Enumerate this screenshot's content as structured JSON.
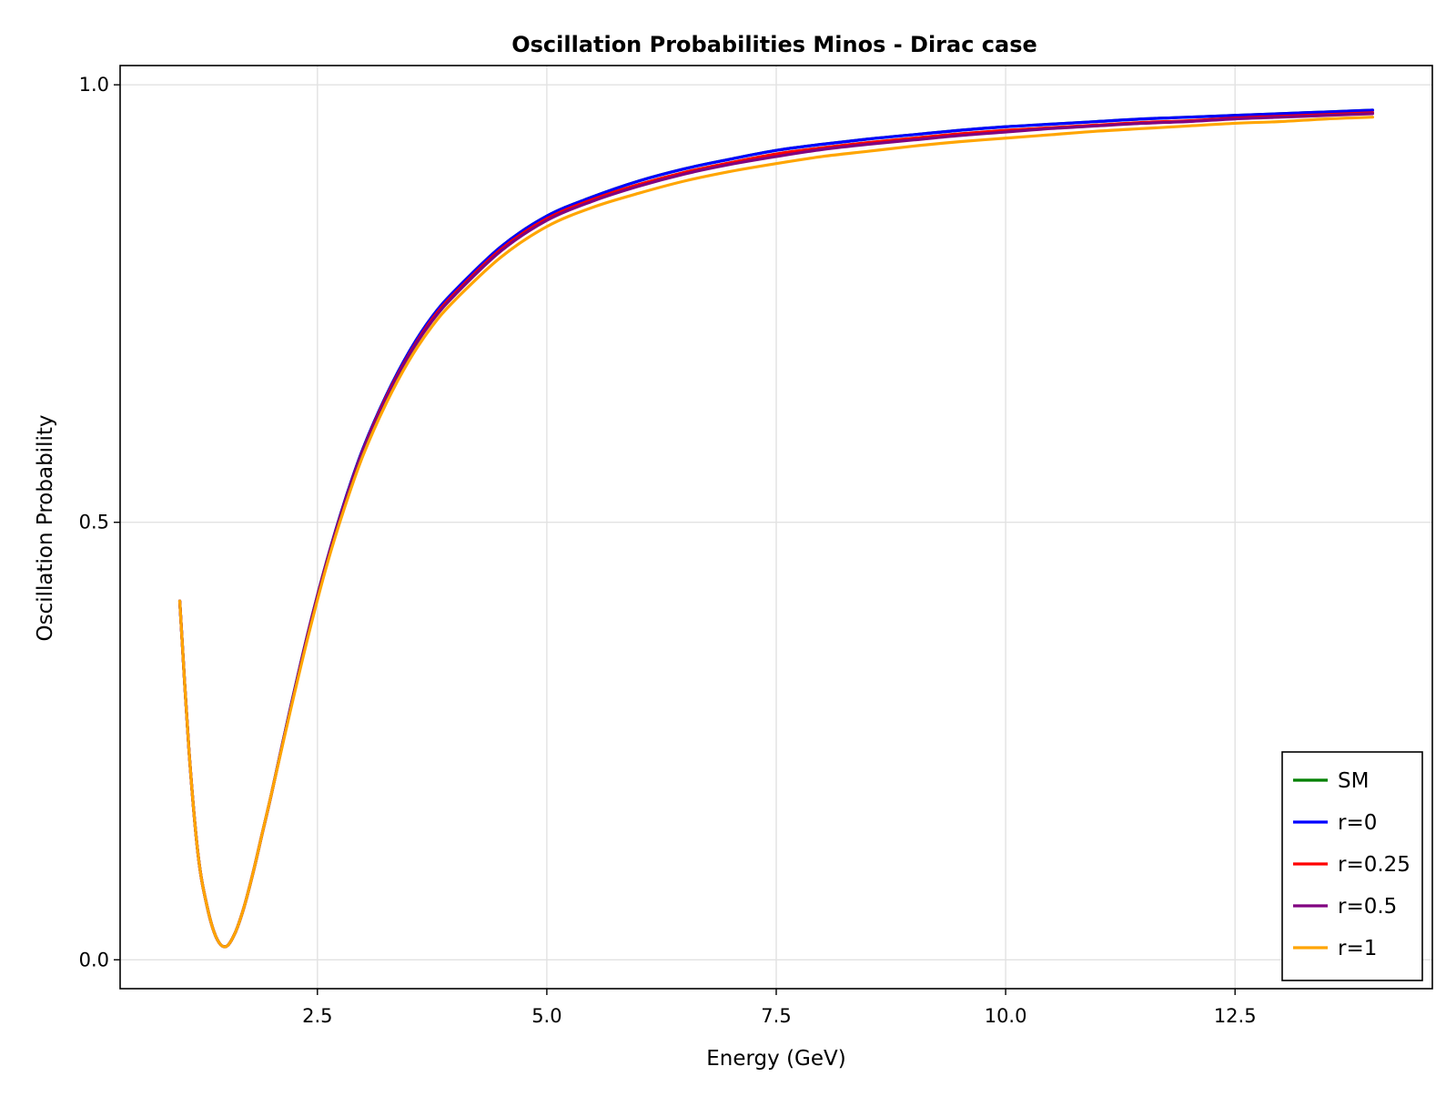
{
  "chart_data": {
    "type": "line",
    "title": "Oscillation Probabilities Minos - Dirac case",
    "xlabel": "Energy (GeV)",
    "ylabel": "Oscillation Probability",
    "xlim": [
      0.35,
      14.65
    ],
    "ylim": [
      -0.033,
      1.022
    ],
    "x_ticks": [
      2.5,
      5.0,
      7.5,
      10.0,
      12.5
    ],
    "x_tick_labels": [
      "2.5",
      "5.0",
      "7.5",
      "10.0",
      "12.5"
    ],
    "y_ticks": [
      0.0,
      0.5,
      1.0
    ],
    "y_tick_labels": [
      "0.0",
      "0.5",
      "1.0"
    ],
    "grid": true,
    "legend_position": "bottom-right",
    "x": [
      1.0,
      1.1,
      1.2,
      1.3,
      1.4,
      1.5,
      1.6,
      1.7,
      1.8,
      1.9,
      2.0,
      2.2,
      2.4,
      2.6,
      2.8,
      3.0,
      3.25,
      3.5,
      3.75,
      4.0,
      4.5,
      5.0,
      5.5,
      6.0,
      6.5,
      7.0,
      7.5,
      8.0,
      8.5,
      9.0,
      9.5,
      10.0,
      10.5,
      11.0,
      11.5,
      12.0,
      12.5,
      13.0,
      13.5,
      14.0
    ],
    "series": [
      {
        "name": "SM",
        "color": "#008000",
        "values": [
          0.41,
          0.24,
          0.12,
          0.06,
          0.025,
          0.015,
          0.03,
          0.06,
          0.1,
          0.145,
          0.19,
          0.285,
          0.375,
          0.455,
          0.525,
          0.585,
          0.645,
          0.695,
          0.735,
          0.765,
          0.815,
          0.85,
          0.872,
          0.89,
          0.904,
          0.915,
          0.925,
          0.932,
          0.938,
          0.943,
          0.948,
          0.952,
          0.955,
          0.958,
          0.961,
          0.963,
          0.965,
          0.967,
          0.969,
          0.971
        ]
      },
      {
        "name": "r=0",
        "color": "#0000ff",
        "values": [
          0.41,
          0.24,
          0.12,
          0.06,
          0.025,
          0.015,
          0.03,
          0.06,
          0.1,
          0.145,
          0.19,
          0.285,
          0.375,
          0.455,
          0.525,
          0.585,
          0.645,
          0.695,
          0.735,
          0.765,
          0.815,
          0.85,
          0.872,
          0.89,
          0.904,
          0.915,
          0.925,
          0.932,
          0.938,
          0.943,
          0.948,
          0.952,
          0.955,
          0.958,
          0.961,
          0.963,
          0.965,
          0.967,
          0.969,
          0.971
        ]
      },
      {
        "name": "r=0.25",
        "color": "#ff0000",
        "values": [
          0.41,
          0.24,
          0.12,
          0.06,
          0.025,
          0.015,
          0.03,
          0.06,
          0.1,
          0.145,
          0.19,
          0.284,
          0.374,
          0.454,
          0.523,
          0.583,
          0.643,
          0.692,
          0.732,
          0.762,
          0.812,
          0.847,
          0.869,
          0.886,
          0.9,
          0.911,
          0.921,
          0.928,
          0.934,
          0.939,
          0.944,
          0.948,
          0.951,
          0.954,
          0.957,
          0.959,
          0.962,
          0.964,
          0.966,
          0.968
        ]
      },
      {
        "name": "r=0.5",
        "color": "#800080",
        "values": [
          0.41,
          0.24,
          0.12,
          0.06,
          0.025,
          0.015,
          0.03,
          0.06,
          0.1,
          0.145,
          0.19,
          0.284,
          0.373,
          0.453,
          0.522,
          0.582,
          0.641,
          0.691,
          0.73,
          0.76,
          0.81,
          0.845,
          0.867,
          0.884,
          0.898,
          0.909,
          0.918,
          0.926,
          0.932,
          0.937,
          0.942,
          0.946,
          0.95,
          0.953,
          0.956,
          0.958,
          0.961,
          0.963,
          0.965,
          0.967
        ]
      },
      {
        "name": "r=1",
        "color": "#ffa500",
        "values": [
          0.41,
          0.24,
          0.12,
          0.06,
          0.025,
          0.015,
          0.03,
          0.06,
          0.1,
          0.145,
          0.19,
          0.282,
          0.37,
          0.45,
          0.518,
          0.577,
          0.636,
          0.685,
          0.724,
          0.754,
          0.803,
          0.838,
          0.86,
          0.876,
          0.89,
          0.901,
          0.91,
          0.918,
          0.924,
          0.93,
          0.935,
          0.939,
          0.943,
          0.947,
          0.95,
          0.953,
          0.956,
          0.958,
          0.961,
          0.963
        ]
      }
    ]
  }
}
